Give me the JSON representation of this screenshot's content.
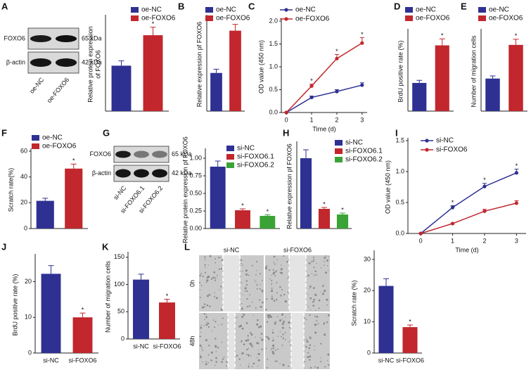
{
  "chart_data": [
    {
      "type": "blot",
      "panel": "A",
      "proteins": [
        "FOXO6",
        "β-actin"
      ],
      "sizes": [
        "65 kDa",
        "42 kDa"
      ],
      "lanes": [
        "oe-NC",
        "oe-FOXO6"
      ]
    },
    {
      "type": "bar",
      "ylabel": [
        "Relative protein expression",
        "of FOXO6"
      ],
      "categories": [
        "oe-NC",
        "oe-FOXO6"
      ],
      "colors": [
        "#2e3192",
        "#c1272d"
      ],
      "values": [
        0.85,
        1.42
      ],
      "errors": [
        0.09,
        0.15
      ],
      "sig_labels": [
        null,
        "*"
      ],
      "ylim": [
        0,
        1.75
      ],
      "legend": true
    },
    {
      "type": "bar",
      "panel": "B",
      "ylabel": "Relative expression pf FOXO6",
      "categories": [
        "oe-NC",
        "oe-FOXO6"
      ],
      "colors": [
        "#2e3192",
        "#c1272d"
      ],
      "values": [
        1.02,
        2.15
      ],
      "errors": [
        0.1,
        0.17
      ],
      "ylim": [
        0,
        2.5
      ],
      "legend": true
    },
    {
      "type": "line",
      "panel": "C",
      "xlabel": "Time (d)",
      "ylabel": "OD value (450 nm)",
      "x": [
        0,
        1,
        2,
        3
      ],
      "xlim": [
        -0.2,
        3.2
      ],
      "xticks": [
        0,
        1,
        2,
        3
      ],
      "ylim": [
        0,
        2
      ],
      "yticks": [
        {
          "value": 0,
          "label": "0.0"
        },
        0.5,
        {
          "value": 1,
          "label": "1.0"
        },
        1.5,
        {
          "value": 2,
          "label": "2.0"
        }
      ],
      "legend": true,
      "series": [
        {
          "name": "oe-NC",
          "color": "#2e3192",
          "values": [
            0,
            0.33,
            0.46,
            0.6
          ],
          "errors": [
            0,
            0.03,
            0.04,
            0.05
          ]
        },
        {
          "name": "oe-FOXO6",
          "color": "#c1272d",
          "values": [
            0,
            0.58,
            1.18,
            1.52
          ],
          "errors": [
            0,
            0.04,
            0.09,
            0.12
          ],
          "sig_labels": [
            null,
            "*",
            "*",
            "*"
          ]
        }
      ]
    },
    {
      "type": "bar",
      "panel": "D",
      "ylabel": "BrdU positive rate (%)",
      "categories": [
        "oe-NC",
        "oe-FOXO6"
      ],
      "colors": [
        "#2e3192",
        "#c1272d"
      ],
      "values": [
        19.5,
        45.5
      ],
      "errors": [
        1.8,
        4.5
      ],
      "sig_labels": [
        null,
        "*"
      ],
      "ylim": [
        0,
        55
      ],
      "legend": true
    },
    {
      "type": "bar",
      "panel": "E",
      "ylabel": "Number of migration cells",
      "categories": [
        "oe-NC",
        "oe-FOXO6"
      ],
      "colors": [
        "#2e3192",
        "#c1272d"
      ],
      "values": [
        86,
        175
      ],
      "errors": [
        7,
        15
      ],
      "sig_labels": [
        null,
        "*"
      ],
      "ylim": [
        0,
        210
      ],
      "legend": true
    },
    {
      "type": "bar",
      "panel": "F",
      "ylabel": "Scratch rate(%)",
      "categories": [
        "oe-NC",
        "oe-FOXO6"
      ],
      "colors": [
        "#2e3192",
        "#c1272d"
      ],
      "values": [
        21.5,
        46.5
      ],
      "errors": [
        2,
        3.5
      ],
      "sig_labels": [
        null,
        "*"
      ],
      "ylim": [
        0,
        60
      ],
      "yticks": [
        0,
        20,
        40,
        60
      ],
      "legend": true
    },
    {
      "type": "blot",
      "panel": "G",
      "proteins": [
        "FOXO6",
        "β-actin"
      ],
      "sizes": [
        "65 kDa",
        "42 kDa"
      ],
      "lanes": [
        "si-NC",
        "si-FOXO6.1",
        "si-FOXO6.2"
      ]
    },
    {
      "type": "bar",
      "ylabel": "Relative protein expression pf FOXO6",
      "categories": [
        "si-NC",
        "si-FOXO6.1",
        "si-FOXO6.2"
      ],
      "colors": [
        "#2e3192",
        "#c1272d",
        "#3aa335"
      ],
      "values": [
        0.88,
        0.26,
        0.18
      ],
      "errors": [
        0.08,
        0.02,
        0.015
      ],
      "sig_labels": [
        null,
        "*",
        "*"
      ],
      "ylim": [
        0,
        1.1
      ],
      "yticks": [
        {
          "value": 0,
          "label": "0.00"
        },
        0.25,
        {
          "value": 0.5,
          "label": "0.50"
        },
        0.75,
        {
          "value": 1,
          "label": "1.00"
        }
      ],
      "legend": true
    },
    {
      "type": "bar",
      "panel": "H",
      "ylabel": "Relative expression pf FOXO6",
      "categories": [
        "si-NC",
        "si-FOXO6.1",
        "si-FOXO6.2"
      ],
      "colors": [
        "#2e3192",
        "#c1272d",
        "#3aa335"
      ],
      "values": [
        1.0,
        0.28,
        0.2
      ],
      "errors": [
        0.12,
        0.02,
        0.02
      ],
      "sig_labels": [
        null,
        "*",
        "*"
      ],
      "ylim": [
        0,
        1.2
      ],
      "legend": true
    },
    {
      "type": "line",
      "panel": "I",
      "xlabel": "Time (d)",
      "ylabel": "OD value (450 nm)",
      "x": [
        0,
        1,
        2,
        3
      ],
      "xlim": [
        -0.4,
        3.3
      ],
      "xticks": [
        0,
        1,
        2,
        3
      ],
      "ylim": [
        0,
        1.5
      ],
      "yticks": [
        {
          "value": 0,
          "label": "0.0"
        },
        0.5,
        {
          "value": 1,
          "label": "1.0"
        },
        1.5
      ],
      "legend": true,
      "series": [
        {
          "name": "si-NC",
          "color": "#2e3192",
          "values": [
            0,
            0.42,
            0.76,
            0.98
          ],
          "errors": [
            0,
            0.03,
            0.05,
            0.06
          ],
          "sig_labels": [
            null,
            "*",
            "*",
            "*"
          ]
        },
        {
          "name": "si-FOXO6",
          "color": "#c1272d",
          "values": [
            0,
            0.16,
            0.36,
            0.49
          ],
          "errors": [
            0,
            0.01,
            0.03,
            0.04
          ]
        }
      ]
    },
    {
      "type": "bar",
      "panel": "J",
      "ylabel": "BrdU positive rate (%)",
      "categories": [
        "si-NC",
        "si-FOXO6"
      ],
      "colors": [
        "#2e3192",
        "#c1272d"
      ],
      "values": [
        22.2,
        10
      ],
      "errors": [
        2.3,
        1.2
      ],
      "sig_labels": [
        null,
        "*"
      ],
      "ylim": [
        0,
        27
      ],
      "yticks": [
        0,
        10,
        20
      ],
      "legend": false
    },
    {
      "type": "bar",
      "panel": "K",
      "ylabel": "Number of migration cells",
      "categories": [
        "si-NC",
        "si-FOXO6"
      ],
      "colors": [
        "#2e3192",
        "#c1272d"
      ],
      "values": [
        109,
        67
      ],
      "errors": [
        10,
        6
      ],
      "sig_labels": [
        null,
        "*"
      ],
      "ylim": [
        0,
        155
      ],
      "yticks": [
        0,
        50,
        100,
        150
      ],
      "legend": false
    },
    {
      "type": "micrograph",
      "panel": "L",
      "columns": [
        "si-NC",
        "si-FOXO6"
      ],
      "rows": [
        "0h",
        "48h"
      ]
    },
    {
      "type": "bar",
      "ylabel": "Scratch rate (%)",
      "categories": [
        "si-NC",
        "si-FOXO6"
      ],
      "colors": [
        "#2e3192",
        "#c1272d"
      ],
      "values": [
        21.5,
        8.3
      ],
      "errors": [
        2.3,
        0.7
      ],
      "sig_labels": [
        null,
        "*"
      ],
      "ylim": [
        0,
        32
      ],
      "yticks": [
        0,
        10,
        20,
        30
      ],
      "legend": false
    }
  ]
}
